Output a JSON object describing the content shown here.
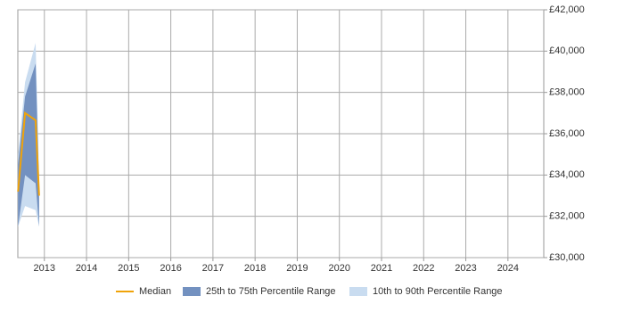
{
  "chart_data": {
    "type": "range-line",
    "x": [
      2012.375,
      2012.542,
      2012.792,
      2012.875
    ],
    "xlim": [
      2012.37,
      2024.85
    ],
    "xticks": [
      2013,
      2014,
      2015,
      2016,
      2017,
      2018,
      2019,
      2020,
      2021,
      2022,
      2023,
      2024
    ],
    "ylim": [
      30000,
      42000
    ],
    "yticks": [
      {
        "value": 30000,
        "label": "£30,000"
      },
      {
        "value": 32000,
        "label": "£32,000"
      },
      {
        "value": 34000,
        "label": "£34,000"
      },
      {
        "value": 36000,
        "label": "£36,000"
      },
      {
        "value": 38000,
        "label": "£38,000"
      },
      {
        "value": 40000,
        "label": "£40,000"
      },
      {
        "value": 42000,
        "label": "£42,000"
      }
    ],
    "grid": true,
    "series": [
      {
        "name": "Median",
        "color": "#f0a30a",
        "values": [
          33200,
          37000,
          36650,
          33000
        ]
      },
      {
        "name": "25th to 75th Percentile Range",
        "color": "#7391c0",
        "low": [
          31500,
          34000,
          33600,
          31500
        ],
        "high": [
          34500,
          37800,
          39400,
          33500
        ]
      },
      {
        "name": "10th to 90th Percentile Range",
        "color": "#c9dcf0",
        "low": [
          31500,
          32500,
          32300,
          31500
        ],
        "high": [
          35000,
          38500,
          40400,
          34000
        ]
      }
    ]
  }
}
